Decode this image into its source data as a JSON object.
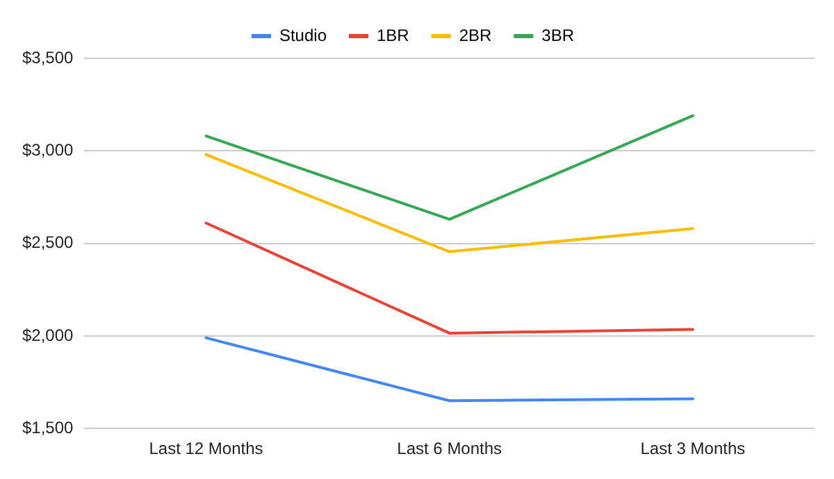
{
  "chart_data": {
    "type": "line",
    "categories": [
      "Last 12 Months",
      "Last 6 Months",
      "Last 3 Months"
    ],
    "series": [
      {
        "name": "Studio",
        "color": "#4285f4",
        "values": [
          1990,
          1650,
          1660
        ]
      },
      {
        "name": "1BR",
        "color": "#ea4335",
        "values": [
          2610,
          2015,
          2035
        ]
      },
      {
        "name": "2BR",
        "color": "#fbbc04",
        "values": [
          2980,
          2455,
          2580
        ]
      },
      {
        "name": "3BR",
        "color": "#34a853",
        "values": [
          3080,
          2630,
          3190
        ]
      }
    ],
    "ylim": [
      1500,
      3500
    ],
    "yticks": [
      {
        "value": 1500,
        "label": "$1,500"
      },
      {
        "value": 2000,
        "label": "$2,000"
      },
      {
        "value": 2500,
        "label": "$2,500"
      },
      {
        "value": 3000,
        "label": "$3,000"
      },
      {
        "value": 3500,
        "label": "$3,500"
      }
    ],
    "grid": "y",
    "legend": "top",
    "marker": "none"
  }
}
